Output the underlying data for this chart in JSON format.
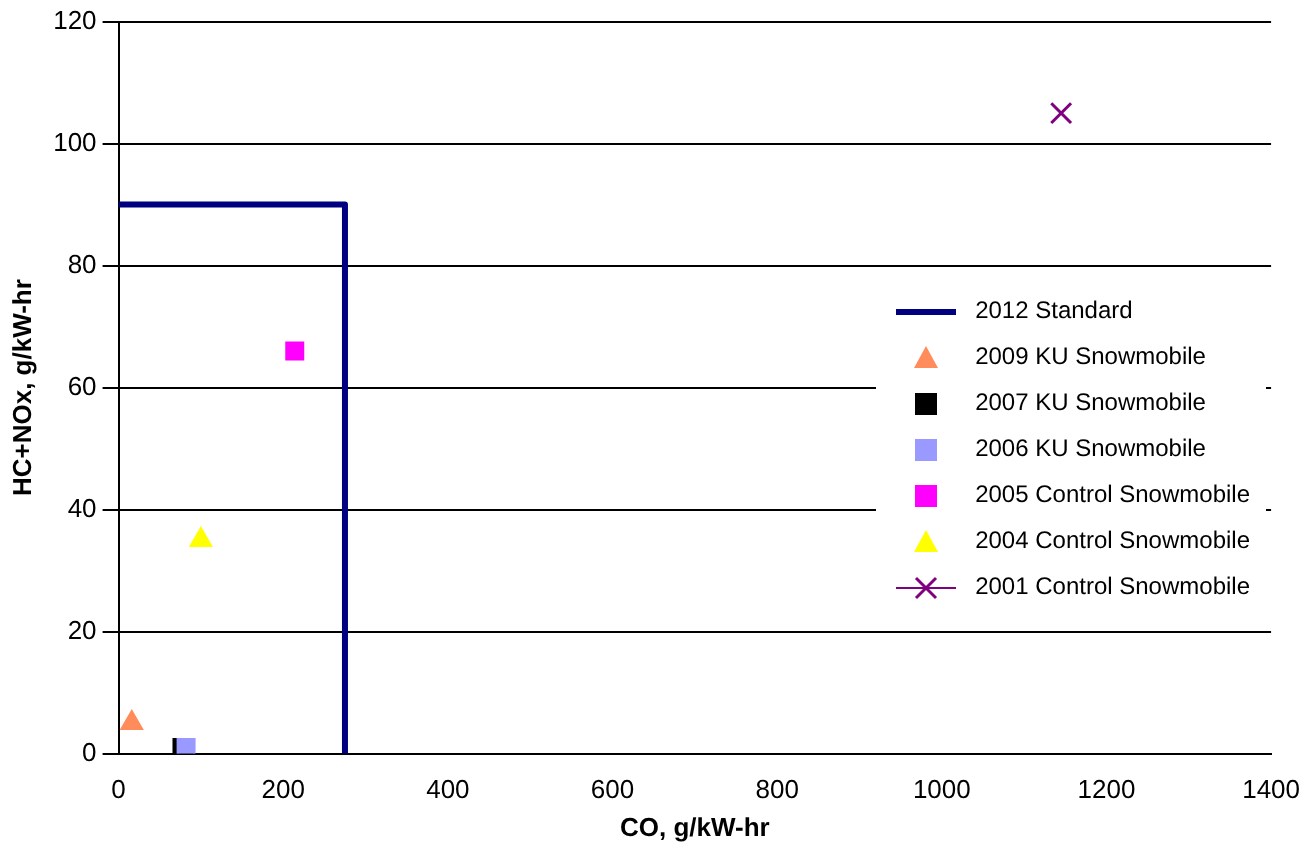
{
  "chart_data": {
    "type": "scatter",
    "xlabel": "CO, g/kW-hr",
    "ylabel": "HC+NOx, g/kW-hr",
    "xlim": [
      0,
      1400
    ],
    "xticks": [
      0,
      200,
      400,
      600,
      800,
      1000,
      1200,
      1400
    ],
    "ylim": [
      0,
      120
    ],
    "yticks": [
      0,
      20,
      40,
      60,
      80,
      100,
      120
    ],
    "grid": "y",
    "legend": "right",
    "series": [
      {
        "name": "2012 Standard",
        "type": "line",
        "color": "#000080",
        "marker": "none",
        "line_style": "solid",
        "x": [
          0,
          275,
          275
        ],
        "values": [
          90,
          90,
          0
        ]
      },
      {
        "name": "2009 KU Snowmobile",
        "color": "#ff8c5a",
        "marker": "triangle",
        "x": [
          16
        ],
        "values": [
          5
        ]
      },
      {
        "name": "2007 KU Snowmobile",
        "color": "#000000",
        "marker": "square",
        "x": [
          77
        ],
        "values": [
          1
        ]
      },
      {
        "name": "2006 KU Snowmobile",
        "color": "#9999ff",
        "marker": "square",
        "x": [
          82
        ],
        "values": [
          1
        ]
      },
      {
        "name": "2005 Control Snowmobile",
        "color": "#ff00ff",
        "marker": "square",
        "x": [
          214
        ],
        "values": [
          66
        ]
      },
      {
        "name": "2004 Control Snowmobile",
        "color": "#ffff00",
        "marker": "triangle",
        "x": [
          100
        ],
        "values": [
          35
        ]
      },
      {
        "name": "2001 Control Snowmobile",
        "color": "#800080",
        "marker": "cross",
        "x": [
          1145
        ],
        "values": [
          105
        ]
      }
    ]
  }
}
